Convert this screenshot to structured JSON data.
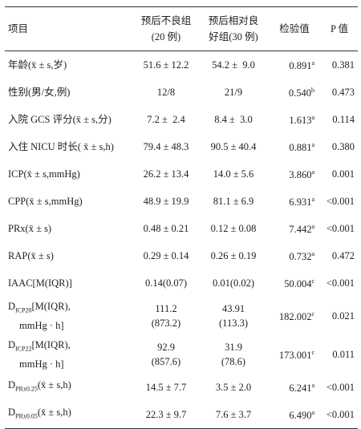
{
  "table": {
    "header": [
      [
        "项目"
      ],
      [
        "预后不良组",
        "(20 例)"
      ],
      [
        "预后相对良",
        "好组(30 例)"
      ],
      [
        "检验值"
      ],
      [
        "P 值"
      ]
    ],
    "rows": [
      {
        "label": {
          "main": "年龄(x̄ ± s,岁)"
        },
        "g1": [
          "51.6 ± 12.2"
        ],
        "g2": [
          "54.2 ±  9.0"
        ],
        "test": {
          "value": "0.891",
          "sup": "a"
        },
        "p": "0.381"
      },
      {
        "label": {
          "main": "性别(男/女,例)"
        },
        "g1": [
          "12/8"
        ],
        "g2": [
          "21/9"
        ],
        "test": {
          "value": "0.540",
          "sup": "b"
        },
        "p": "0.473"
      },
      {
        "label": {
          "main": "入院 GCS 评分(x̄ ± s,分)"
        },
        "g1": [
          "7.2 ±  2.4"
        ],
        "g2": [
          "8.4 ±  3.0"
        ],
        "test": {
          "value": "1.613",
          "sup": "a"
        },
        "p": "0.114"
      },
      {
        "label": {
          "main": "入住 NICU 时长( x̄ ± s,h)"
        },
        "g1": [
          "79.4 ± 48.3"
        ],
        "g2": [
          "90.5 ± 40.4"
        ],
        "test": {
          "value": "0.881",
          "sup": "a"
        },
        "p": "0.380"
      },
      {
        "label": {
          "main": "ICP(x̄ ± s,mmHg)"
        },
        "g1": [
          "26.2 ± 13.4"
        ],
        "g2": [
          "14.0 ± 5.6"
        ],
        "test": {
          "value": "3.860",
          "sup": "a"
        },
        "p": "0.001"
      },
      {
        "label": {
          "main": "CPP(x̄ ± s,mmHg)"
        },
        "g1": [
          "48.9 ± 19.9"
        ],
        "g2": [
          "81.1 ± 6.9"
        ],
        "test": {
          "value": "6.931",
          "sup": "a"
        },
        "p": "<0.001"
      },
      {
        "label": {
          "main": "PRx(x̄ ± s)"
        },
        "g1": [
          "0.48 ± 0.21"
        ],
        "g2": [
          "0.12 ± 0.08"
        ],
        "test": {
          "value": "7.442",
          "sup": "a"
        },
        "p": "<0.001"
      },
      {
        "label": {
          "main": "RAP(x̄ ± s)"
        },
        "g1": [
          "0.29 ± 0.14"
        ],
        "g2": [
          "0.26 ± 0.19"
        ],
        "test": {
          "value": "0.732",
          "sup": "a"
        },
        "p": "0.472"
      },
      {
        "label": {
          "main": "IAAC[M(IQR)]"
        },
        "g1": [
          "0.14(0.07)"
        ],
        "g2": [
          "0.01(0.02)"
        ],
        "test": {
          "value": "50.004",
          "sup": "c"
        },
        "p": "<0.001"
      },
      {
        "label": {
          "main": "D",
          "sub": "ICP20",
          "rest": "[M(IQR),",
          "line2": "mmHg · h]"
        },
        "g1": [
          "111.2",
          "(873.2)"
        ],
        "g2": [
          "43.91",
          "(113.3)"
        ],
        "test": {
          "value": "182.002",
          "sup": "c"
        },
        "p": "0.021"
      },
      {
        "label": {
          "main": "D",
          "sub": "ICP22",
          "rest": "[M(IQR),",
          "line2": "mmHg · h]"
        },
        "g1": [
          "92.9",
          "(857.6)"
        ],
        "g2": [
          "31.9",
          "(78.6)"
        ],
        "test": {
          "value": "173.001",
          "sup": "c"
        },
        "p": "0.011"
      },
      {
        "label": {
          "main": "D",
          "sub": "PRx0.25",
          "rest": "(x̄ ± s,h)"
        },
        "g1": [
          "14.5 ± 7.7"
        ],
        "g2": [
          "3.5 ± 2.0"
        ],
        "test": {
          "value": "6.241",
          "sup": "a"
        },
        "p": "<0.001"
      },
      {
        "label": {
          "main": "D",
          "sub": "PRx0.05",
          "rest": "(x̄ ± s,h)"
        },
        "g1": [
          "22.3 ± 9.7"
        ],
        "g2": [
          "7.6 ± 3.7"
        ],
        "test": {
          "value": "6.490",
          "sup": "a"
        },
        "p": "<0.001"
      }
    ]
  }
}
